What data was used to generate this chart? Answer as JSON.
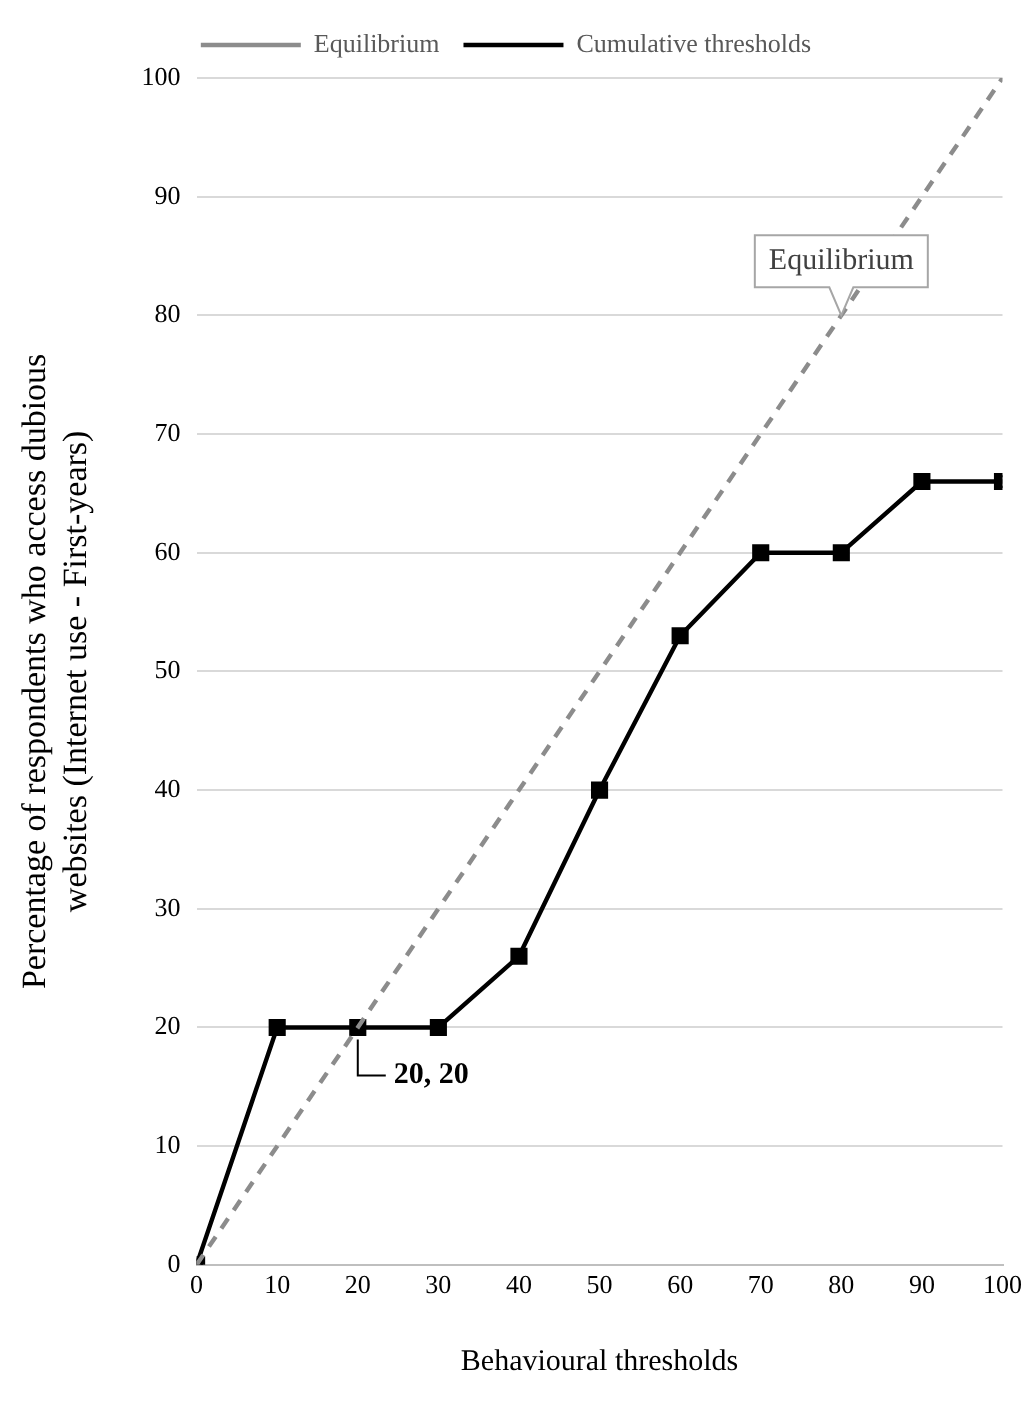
{
  "chart_data": {
    "type": "line",
    "xlabel": "Behavioural thresholds",
    "ylabel": "Percentage of respondents who access dubious websites (Internet use - First-years)",
    "x": [
      0,
      10,
      20,
      30,
      40,
      50,
      60,
      70,
      80,
      90,
      100
    ],
    "series": [
      {
        "name": "Equilibrium",
        "color": "#8c8c8c",
        "x": [
          0,
          100
        ],
        "values": [
          0,
          100
        ],
        "line_style": "dashed",
        "marker": "none"
      },
      {
        "name": "Cumulative thresholds",
        "color": "#000000",
        "values": [
          0,
          20,
          20,
          20,
          26,
          40,
          53,
          60,
          60,
          66,
          66
        ],
        "line_style": "solid",
        "marker": "square"
      }
    ],
    "xlim": [
      0,
      100
    ],
    "xticks": [
      0,
      10,
      20,
      30,
      40,
      50,
      60,
      70,
      80,
      90,
      100
    ],
    "ylim": [
      0,
      100
    ],
    "yticks": [
      0,
      10,
      20,
      30,
      40,
      50,
      60,
      70,
      80,
      90,
      100
    ],
    "grid": "y",
    "legend": "top",
    "annotations": [
      {
        "text": "Equilibrium",
        "x": 80,
        "y": 80
      },
      {
        "text": "20, 20",
        "x": 20,
        "y": 20
      }
    ]
  }
}
